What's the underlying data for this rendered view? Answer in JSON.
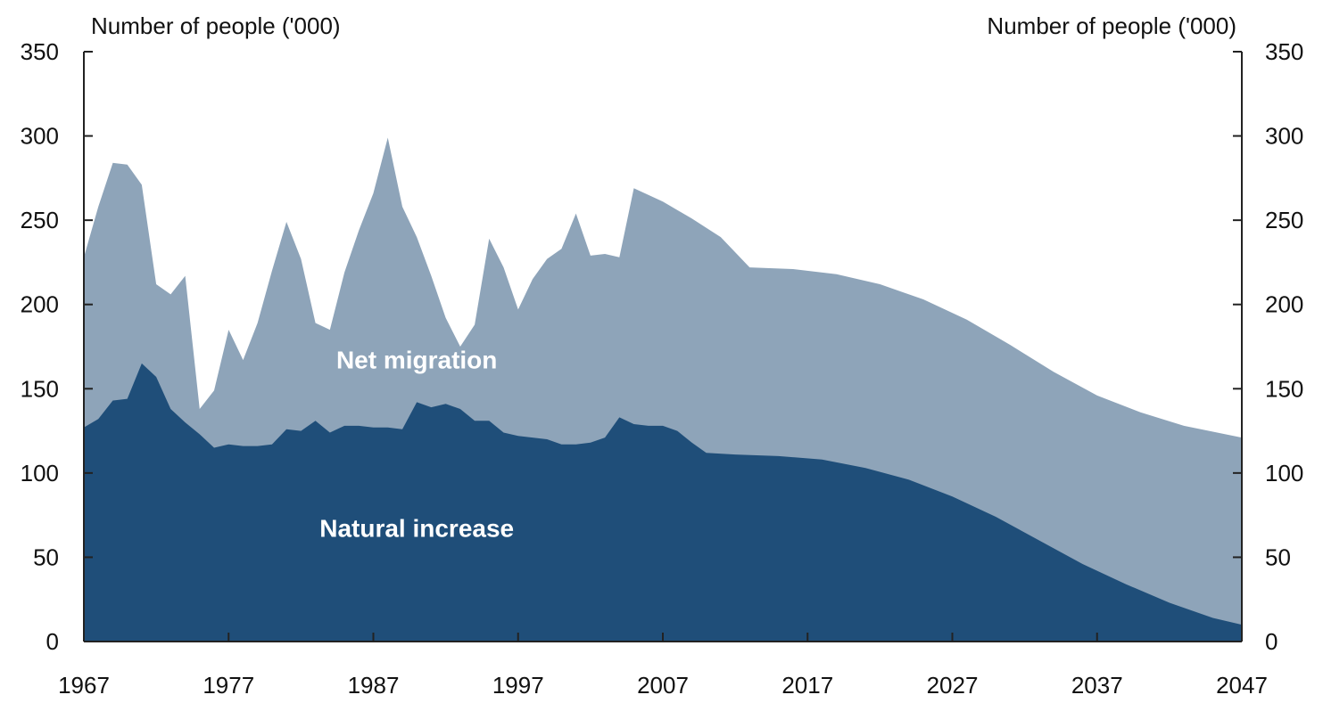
{
  "chart_data": {
    "type": "area",
    "stacked": true,
    "left_axis_title": "Number of people ('000)",
    "right_axis_title": "Number of people ('000)",
    "ylim": [
      0,
      350
    ],
    "yticks": [
      0,
      50,
      100,
      150,
      200,
      250,
      300,
      350
    ],
    "xlim": [
      1967,
      2047
    ],
    "xticks": [
      1967,
      1977,
      1987,
      1997,
      2007,
      2017,
      2027,
      2037,
      2047
    ],
    "grid": false,
    "series": [
      {
        "name": "Natural increase",
        "color": "#1f4e79",
        "points": [
          [
            1967,
            127
          ],
          [
            1968,
            132
          ],
          [
            1969,
            143
          ],
          [
            1970,
            144
          ],
          [
            1971,
            165
          ],
          [
            1972,
            157
          ],
          [
            1973,
            138
          ],
          [
            1974,
            130
          ],
          [
            1975,
            123
          ],
          [
            1976,
            115
          ],
          [
            1977,
            117
          ],
          [
            1978,
            116
          ],
          [
            1979,
            116
          ],
          [
            1980,
            117
          ],
          [
            1981,
            126
          ],
          [
            1982,
            125
          ],
          [
            1983,
            131
          ],
          [
            1984,
            124
          ],
          [
            1985,
            128
          ],
          [
            1986,
            128
          ],
          [
            1987,
            127
          ],
          [
            1988,
            127
          ],
          [
            1989,
            126
          ],
          [
            1990,
            142
          ],
          [
            1991,
            139
          ],
          [
            1992,
            141
          ],
          [
            1993,
            138
          ],
          [
            1994,
            131
          ],
          [
            1995,
            131
          ],
          [
            1996,
            124
          ],
          [
            1997,
            122
          ],
          [
            1998,
            121
          ],
          [
            1999,
            120
          ],
          [
            2000,
            117
          ],
          [
            2001,
            117
          ],
          [
            2002,
            118
          ],
          [
            2003,
            121
          ],
          [
            2004,
            133
          ],
          [
            2005,
            129
          ],
          [
            2006,
            128
          ],
          [
            2007,
            128
          ],
          [
            2008,
            125
          ],
          [
            2009,
            118
          ],
          [
            2010,
            112
          ],
          [
            2012,
            111
          ],
          [
            2015,
            110
          ],
          [
            2018,
            108
          ],
          [
            2021,
            103
          ],
          [
            2024,
            96
          ],
          [
            2027,
            86
          ],
          [
            2030,
            74
          ],
          [
            2033,
            60
          ],
          [
            2036,
            46
          ],
          [
            2039,
            34
          ],
          [
            2042,
            23
          ],
          [
            2045,
            14
          ],
          [
            2047,
            10
          ]
        ]
      },
      {
        "name": "Net migration",
        "color": "#8ea4b9",
        "total_points": [
          [
            1967,
            228
          ],
          [
            1968,
            258
          ],
          [
            1969,
            284
          ],
          [
            1970,
            283
          ],
          [
            1971,
            271
          ],
          [
            1972,
            212
          ],
          [
            1973,
            206
          ],
          [
            1974,
            217
          ],
          [
            1975,
            138
          ],
          [
            1976,
            149
          ],
          [
            1977,
            185
          ],
          [
            1978,
            167
          ],
          [
            1979,
            189
          ],
          [
            1980,
            220
          ],
          [
            1981,
            249
          ],
          [
            1982,
            227
          ],
          [
            1983,
            189
          ],
          [
            1984,
            185
          ],
          [
            1985,
            219
          ],
          [
            1986,
            244
          ],
          [
            1987,
            266
          ],
          [
            1988,
            299
          ],
          [
            1989,
            258
          ],
          [
            1990,
            240
          ],
          [
            1991,
            217
          ],
          [
            1992,
            192
          ],
          [
            1993,
            175
          ],
          [
            1994,
            188
          ],
          [
            1995,
            239
          ],
          [
            1996,
            222
          ],
          [
            1997,
            197
          ],
          [
            1998,
            215
          ],
          [
            1999,
            227
          ],
          [
            2000,
            233
          ],
          [
            2001,
            254
          ],
          [
            2002,
            229
          ],
          [
            2003,
            230
          ],
          [
            2004,
            228
          ],
          [
            2005,
            269
          ],
          [
            2007,
            261
          ],
          [
            2009,
            251
          ],
          [
            2011,
            240
          ],
          [
            2013,
            222
          ],
          [
            2016,
            221
          ],
          [
            2019,
            218
          ],
          [
            2022,
            212
          ],
          [
            2025,
            203
          ],
          [
            2028,
            191
          ],
          [
            2031,
            176
          ],
          [
            2034,
            160
          ],
          [
            2037,
            146
          ],
          [
            2040,
            136
          ],
          [
            2043,
            128
          ],
          [
            2047,
            121
          ]
        ]
      }
    ],
    "annotations": [
      {
        "text": "Net migration",
        "x": 1990,
        "y": 162
      },
      {
        "text": "Natural increase",
        "x": 1990,
        "y": 62
      }
    ]
  }
}
